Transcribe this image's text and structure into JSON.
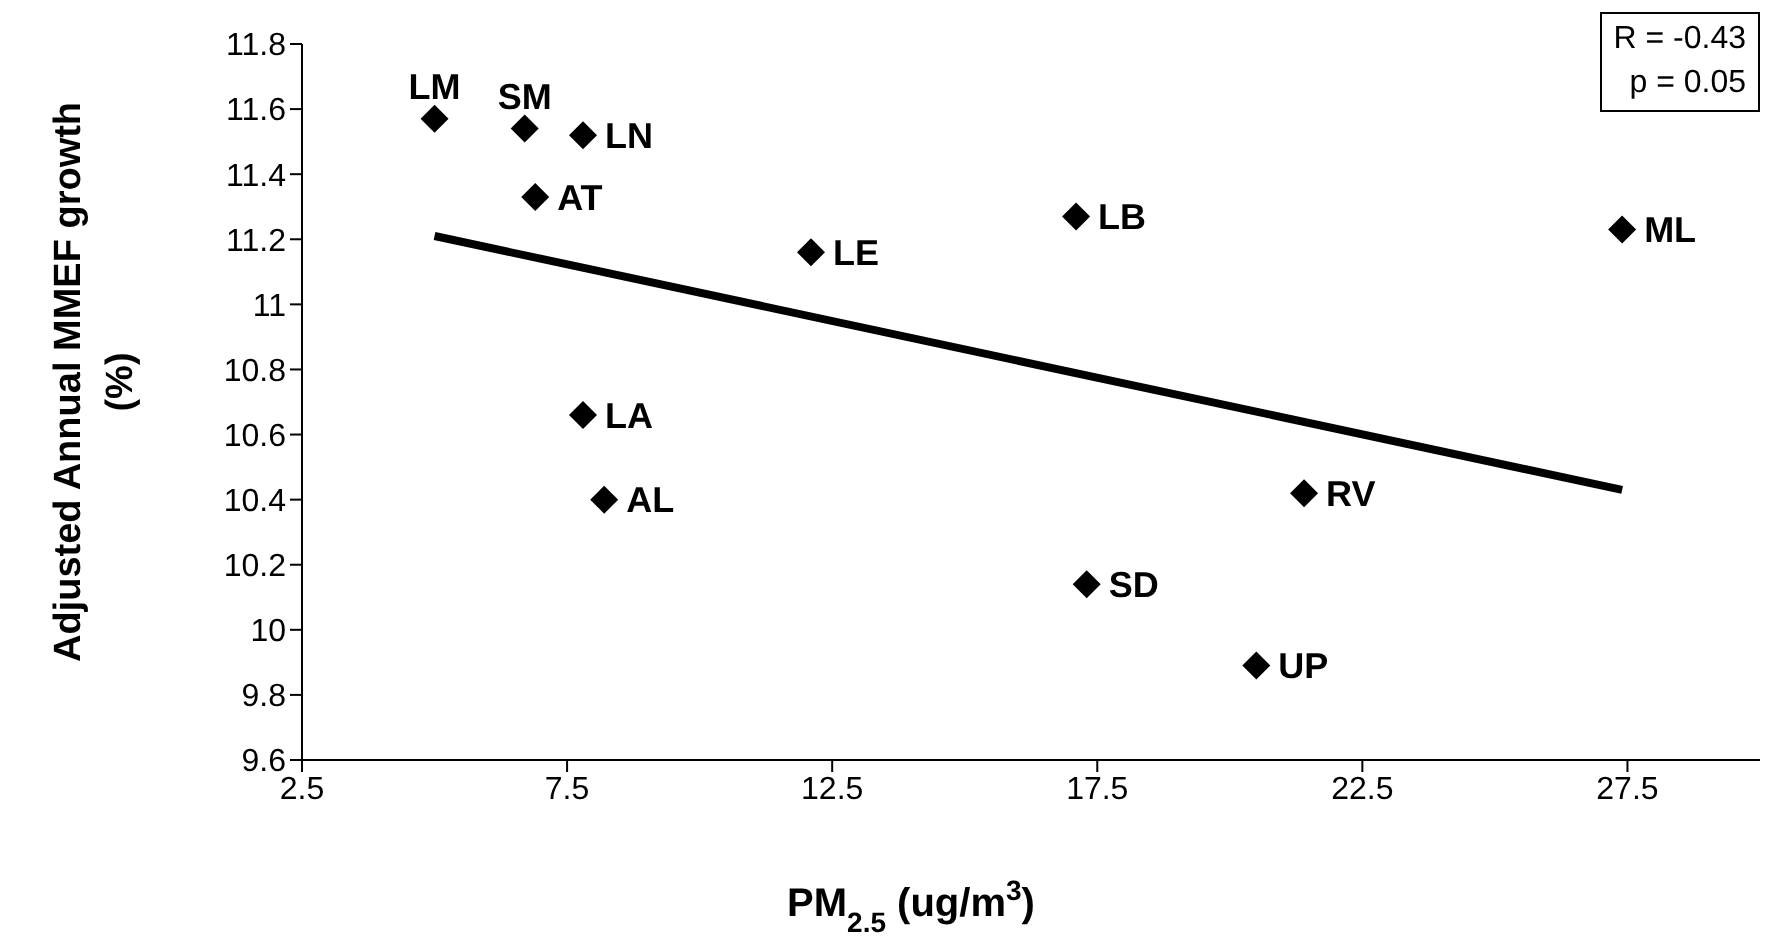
{
  "chart_data": {
    "type": "scatter",
    "xlabel": "PM$_{2.5}$ (ug/m$^{3}$)",
    "ylabel": "Adjusted Annual MMEF growth (%)",
    "xlim": [
      2.5,
      30
    ],
    "xticks": [
      2.5,
      7.5,
      12.5,
      17.5,
      22.5,
      27.5
    ],
    "ylim": [
      9.6,
      11.8
    ],
    "yticks": [
      9.6,
      9.8,
      10,
      10.2,
      10.4,
      10.6,
      10.8,
      11,
      11.2,
      11.4,
      11.6,
      11.8
    ],
    "grid": false,
    "legend": false,
    "marker": "diamond",
    "series": [
      {
        "color": "#000000",
        "x": [
          5.0,
          6.7,
          7.8,
          6.9,
          12.1,
          17.1,
          27.4,
          7.8,
          8.2,
          21.4,
          17.3,
          20.5
        ],
        "values": [
          11.57,
          11.54,
          11.52,
          11.33,
          11.16,
          11.27,
          11.23,
          10.66,
          10.4,
          10.42,
          10.14,
          9.89
        ]
      },
      {
        "type": "line",
        "color": "#000000",
        "marker": "none",
        "x": [
          5.0,
          27.4
        ],
        "values": [
          11.21,
          10.43
        ]
      }
    ],
    "annotations": [
      "R = -0.43",
      "p = 0.05",
      {
        "text": "LM",
        "x": 5.0,
        "y": 11.57
      },
      {
        "text": "SM",
        "x": 6.7,
        "y": 11.54
      },
      {
        "text": "LN",
        "x": 7.8,
        "y": 11.52
      },
      {
        "text": "AT",
        "x": 6.9,
        "y": 11.33
      },
      {
        "text": "LE",
        "x": 12.1,
        "y": 11.16
      },
      {
        "text": "LB",
        "x": 17.1,
        "y": 11.27
      },
      {
        "text": "ML",
        "x": 27.4,
        "y": 11.23
      },
      {
        "text": "LA",
        "x": 7.8,
        "y": 10.66
      },
      {
        "text": "AL",
        "x": 8.2,
        "y": 10.4
      },
      {
        "text": "RV",
        "x": 21.4,
        "y": 10.42
      },
      {
        "text": "SD",
        "x": 17.3,
        "y": 10.14
      },
      {
        "text": "UP",
        "x": 20.5,
        "y": 9.89
      }
    ]
  }
}
